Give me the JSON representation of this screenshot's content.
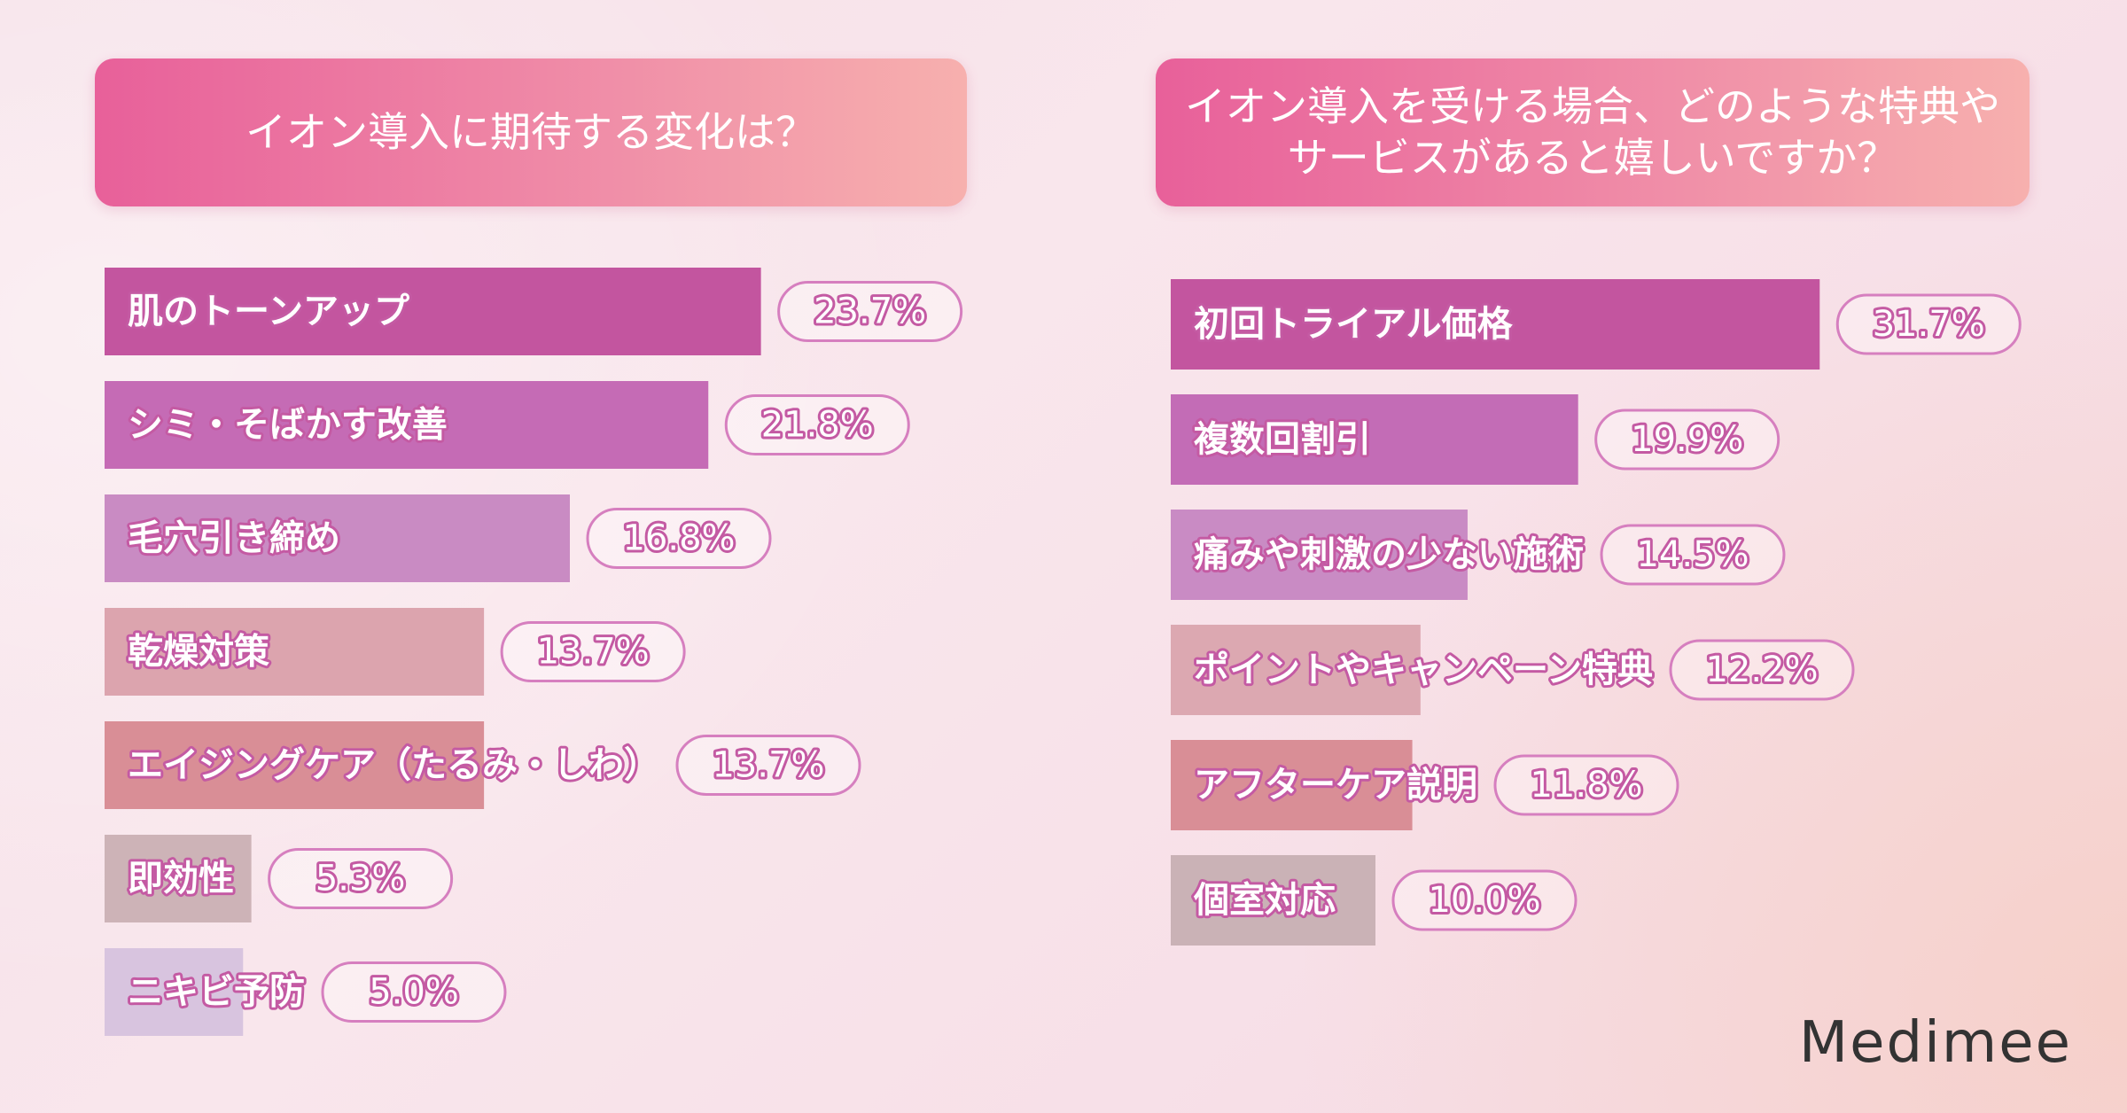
{
  "chart_data": [
    {
      "type": "bar",
      "orientation": "horizontal",
      "title": "イオン導入に期待する変化は？",
      "categories": [
        "肌のトーンアップ",
        "シミ・そばかす改善",
        "毛穴引き締め",
        "乾燥対策",
        "エイジングケア（たるみ・しわ）",
        "即効性",
        "ニキビ予防"
      ],
      "values": [
        23.7,
        21.8,
        16.8,
        13.7,
        13.7,
        5.3,
        5.0
      ],
      "value_labels": [
        "23.7%",
        "21.8%",
        "16.8%",
        "13.7%",
        "13.7%",
        "5.3%",
        "5.0%"
      ],
      "colors": [
        "#c3559f",
        "#c56bb5",
        "#c98bc3",
        "#dca4ae",
        "#d98e96",
        "#cdb3b7",
        "#d8c4df"
      ]
    },
    {
      "type": "bar",
      "orientation": "horizontal",
      "title": "イオン導入を受ける場合、どのような特典や\nサービスがあると嬉しいですか？",
      "categories": [
        "初回トライアル価格",
        "複数回割引",
        "痛みや刺激の少ない施術",
        "ポイントやキャンペーン特典",
        "アフターケア説明",
        "個室対応"
      ],
      "values": [
        31.7,
        19.9,
        14.5,
        12.2,
        11.8,
        10.0
      ],
      "value_labels": [
        "31.7%",
        "19.9%",
        "14.5%",
        "12.2%",
        "11.8%",
        "10.0%"
      ],
      "colors": [
        "#c3559f",
        "#c36cb6",
        "#c98bc4",
        "#dca8b1",
        "#d98e96",
        "#cab2b6"
      ]
    }
  ],
  "brand": "Medimee"
}
